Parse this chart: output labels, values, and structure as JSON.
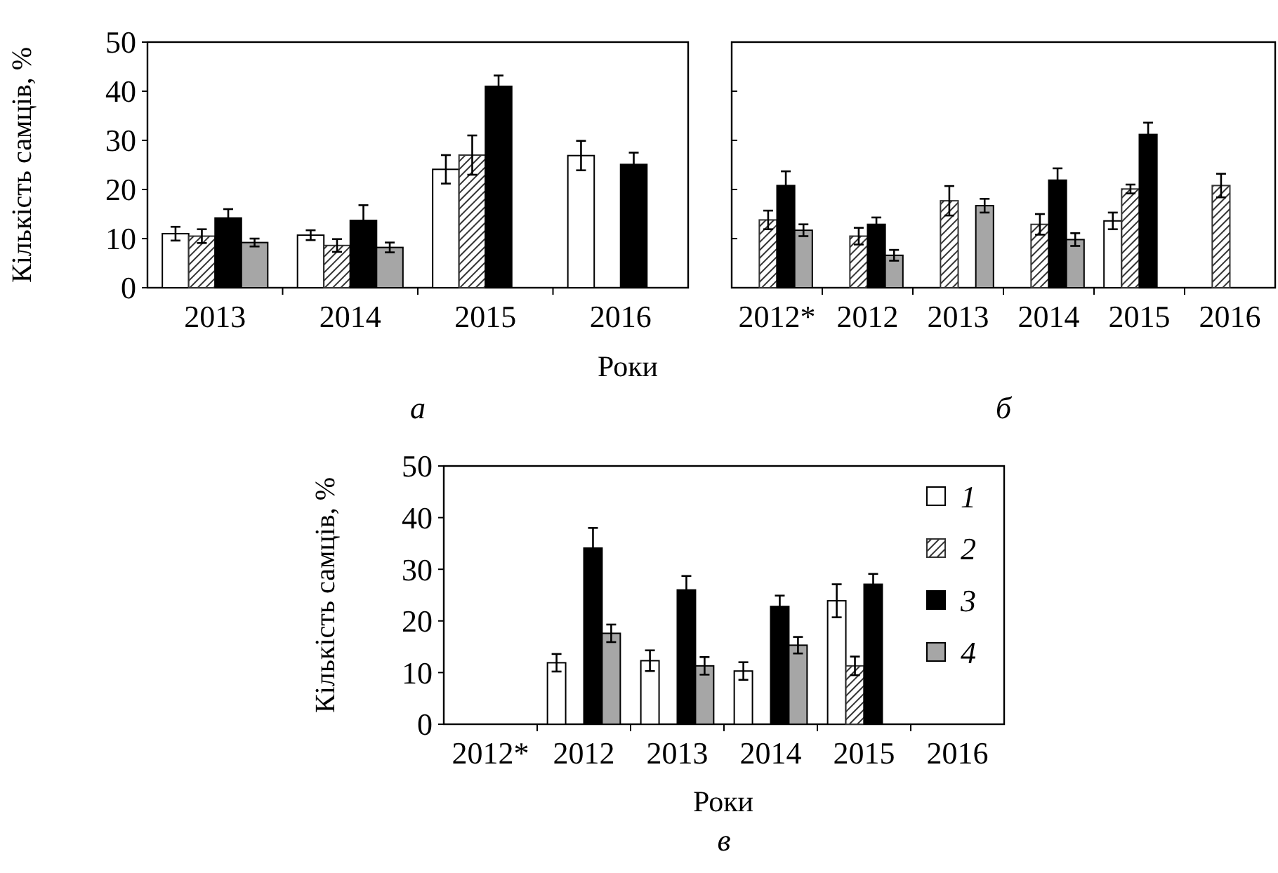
{
  "chart_data": [
    {
      "type": "bar",
      "title": "а",
      "xlabel": "Роки",
      "ylabel": "Кількість самців, %",
      "categories": [
        "2013",
        "2014",
        "2015",
        "2016"
      ],
      "ylim": [
        0,
        50
      ],
      "yticks": [
        0,
        10,
        20,
        30,
        40,
        50
      ],
      "grid": false,
      "legend": false,
      "series": [
        {
          "color": "#ffffff",
          "values": [
            11.0,
            10.7,
            24.1,
            26.9
          ],
          "errors": [
            1.4,
            1.0,
            2.9,
            3.0
          ]
        },
        {
          "color": "#333333",
          "values": [
            10.5,
            8.6,
            27.0,
            null
          ],
          "errors": [
            1.4,
            1.3,
            4.0,
            null
          ]
        },
        {
          "color": "#000000",
          "values": [
            14.2,
            13.7,
            41.0,
            25.1
          ],
          "errors": [
            1.8,
            3.1,
            2.2,
            2.4
          ]
        },
        {
          "color": "#a6a6a6",
          "values": [
            9.2,
            8.2,
            null,
            null
          ],
          "errors": [
            0.8,
            1.0,
            null,
            null
          ]
        }
      ]
    },
    {
      "type": "bar",
      "title": "б",
      "categories": [
        "2012*",
        "2012",
        "2013",
        "2014",
        "2015",
        "2016"
      ],
      "ylim": [
        0,
        50
      ],
      "yticks": [
        0,
        10,
        20,
        30,
        40,
        50
      ],
      "tick_labels": "x",
      "grid": false,
      "legend": false,
      "series": [
        {
          "color": "#ffffff",
          "values": [
            null,
            null,
            null,
            null,
            13.6,
            null
          ],
          "errors": [
            null,
            null,
            null,
            null,
            1.7,
            null
          ]
        },
        {
          "color": "#333333",
          "values": [
            13.8,
            10.5,
            17.7,
            12.9,
            20.1,
            20.8
          ],
          "errors": [
            1.9,
            1.7,
            3.0,
            2.1,
            0.9,
            2.4
          ]
        },
        {
          "color": "#000000",
          "values": [
            20.8,
            12.9,
            null,
            21.9,
            31.2,
            null
          ],
          "errors": [
            2.9,
            1.4,
            null,
            2.4,
            2.4,
            null
          ]
        },
        {
          "color": "#a6a6a6",
          "values": [
            11.7,
            6.6,
            16.7,
            9.8,
            null,
            null
          ],
          "errors": [
            1.2,
            1.1,
            1.4,
            1.3,
            null,
            null
          ]
        }
      ]
    },
    {
      "type": "bar",
      "title": "в",
      "xlabel": "Роки",
      "ylabel": "Кількість самців, %",
      "categories": [
        "2012*",
        "2012",
        "2013",
        "2014",
        "2015",
        "2016"
      ],
      "ylim": [
        0,
        50
      ],
      "yticks": [
        0,
        10,
        20,
        30,
        40,
        50
      ],
      "grid": false,
      "legend": "top right",
      "series": [
        {
          "name": "1",
          "color": "#ffffff",
          "values": [
            null,
            11.9,
            12.3,
            10.3,
            23.9,
            null
          ],
          "errors": [
            null,
            1.7,
            2.0,
            1.7,
            3.2,
            null
          ]
        },
        {
          "name": "2",
          "color": "#333333",
          "values": [
            null,
            null,
            null,
            null,
            11.3,
            null
          ],
          "errors": [
            null,
            null,
            null,
            null,
            1.8,
            null
          ]
        },
        {
          "name": "3",
          "color": "#000000",
          "values": [
            null,
            34.1,
            26.0,
            22.8,
            27.1,
            null
          ],
          "errors": [
            null,
            3.9,
            2.7,
            2.1,
            2.0,
            null
          ]
        },
        {
          "name": "4",
          "color": "#a6a6a6",
          "values": [
            null,
            17.6,
            11.3,
            15.3,
            null,
            null
          ],
          "errors": [
            null,
            1.7,
            1.7,
            1.6,
            null,
            null
          ]
        }
      ]
    }
  ]
}
